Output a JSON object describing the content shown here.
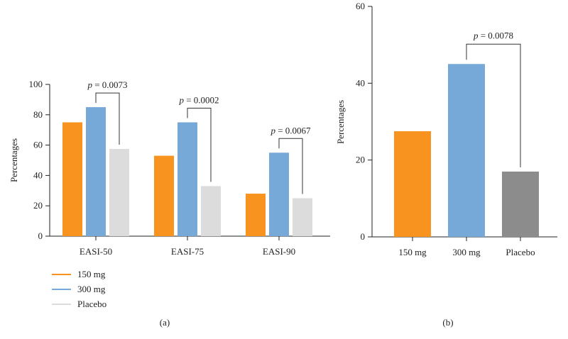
{
  "chart_data": [
    {
      "type": "bar",
      "panel_label": "(a)",
      "categories": [
        "EASI-50",
        "EASI-75",
        "EASI-90"
      ],
      "series": [
        {
          "name": "150 mg",
          "color": "#f7931e",
          "values": [
            75,
            53,
            28
          ]
        },
        {
          "name": "300 mg",
          "color": "#76a8d8",
          "values": [
            85,
            75,
            55
          ]
        },
        {
          "name": "Placebo",
          "color": "#dcdcdc",
          "values": [
            57.5,
            33,
            25
          ]
        }
      ],
      "ylabel": "Percentages",
      "ylim": [
        0,
        100
      ],
      "yticks": [
        0,
        20,
        40,
        60,
        80,
        100
      ],
      "legend_position": "bottom-left",
      "annotations": [
        {
          "category": "EASI-50",
          "from_series": "300 mg",
          "to_series": "Placebo",
          "text_p": "p",
          "text_rest": " = 0.0073"
        },
        {
          "category": "EASI-75",
          "from_series": "300 mg",
          "to_series": "Placebo",
          "text_p": "p",
          "text_rest": " = 0.0002"
        },
        {
          "category": "EASI-90",
          "from_series": "300 mg",
          "to_series": "Placebo",
          "text_p": "p",
          "text_rest": " = 0.0067"
        }
      ]
    },
    {
      "type": "bar",
      "panel_label": "(b)",
      "categories": [
        "150 mg",
        "300 mg",
        "Placebo"
      ],
      "values": [
        27.5,
        45,
        17
      ],
      "colors": [
        "#f7931e",
        "#76a8d8",
        "#8c8c8c"
      ],
      "ylabel": "Percentages",
      "ylim": [
        0,
        60
      ],
      "yticks": [
        0,
        20,
        40,
        60
      ],
      "annotations": [
        {
          "from_category": "300 mg",
          "to_category": "Placebo",
          "text_p": "p",
          "text_rest": " = 0.0078"
        }
      ]
    }
  ]
}
